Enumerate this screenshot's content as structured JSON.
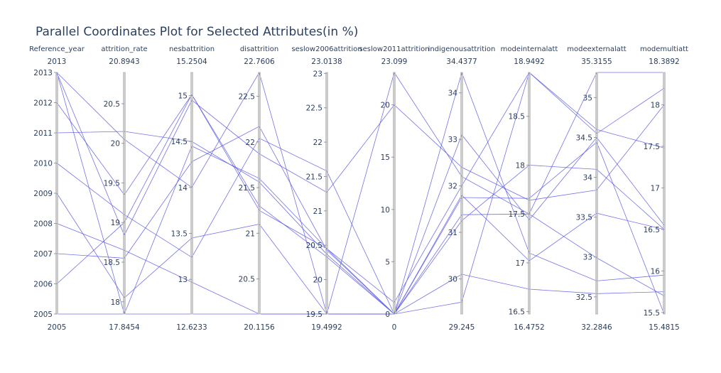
{
  "colors": {
    "line": "#5b5be6",
    "text": "#2a3f5f"
  },
  "chart_data": {
    "type": "parallel_coordinates",
    "title": "Parallel Coordinates Plot for Selected Attributes(in %)",
    "dimensions": [
      {
        "label": "Reference_year",
        "range": [
          2005,
          2013
        ],
        "min_label": "2005",
        "max_label": "2013",
        "ticks": [
          2005,
          2006,
          2007,
          2008,
          2009,
          2010,
          2011,
          2012,
          2013
        ]
      },
      {
        "label": "attrition_rate",
        "range": [
          17.8454,
          20.8943
        ],
        "min_label": "17.8454",
        "max_label": "20.8943",
        "ticks": [
          18,
          18.5,
          19,
          19.5,
          20,
          20.5
        ]
      },
      {
        "label": "nesbattrition",
        "range": [
          12.6233,
          15.2504
        ],
        "min_label": "12.6233",
        "max_label": "15.2504",
        "ticks": [
          13,
          13.5,
          14,
          14.5,
          15
        ]
      },
      {
        "label": "disattrition",
        "range": [
          20.1156,
          22.7606
        ],
        "min_label": "20.1156",
        "max_label": "22.7606",
        "ticks": [
          20.5,
          21,
          21.5,
          22,
          22.5
        ]
      },
      {
        "label": "seslow2006attrition",
        "range": [
          19.4992,
          23.0138
        ],
        "min_label": "19.4992",
        "max_label": "23.0138",
        "ticks": [
          19.5,
          20,
          20.5,
          21,
          21.5,
          22,
          22.5,
          23
        ]
      },
      {
        "label": "seslow2011attrition",
        "range": [
          0,
          23.099
        ],
        "min_label": "0",
        "max_label": "23.099",
        "ticks": [
          0,
          5,
          10,
          15,
          20
        ]
      },
      {
        "label": "indigenousattrition",
        "range": [
          29.245,
          34.4377
        ],
        "min_label": "29.245",
        "max_label": "34.4377",
        "ticks": [
          30,
          31,
          32,
          33,
          34
        ]
      },
      {
        "label": "modeinternalatt",
        "range": [
          16.4752,
          18.9492
        ],
        "min_label": "16.4752",
        "max_label": "18.9492",
        "ticks": [
          16.5,
          17,
          17.5,
          18,
          18.5
        ]
      },
      {
        "label": "modeexternalatt",
        "range": [
          32.2846,
          35.3155
        ],
        "min_label": "32.2846",
        "max_label": "35.3155",
        "ticks": [
          32.5,
          33,
          33.5,
          34,
          34.5,
          35
        ]
      },
      {
        "label": "modemultiatt",
        "range": [
          15.4815,
          18.3892
        ],
        "min_label": "15.4815",
        "max_label": "18.3892",
        "ticks": [
          15.5,
          16,
          16.5,
          17,
          17.5,
          18
        ]
      }
    ],
    "records": [
      [
        2005,
        17.8454,
        14.45,
        21.6,
        20.45,
        1.1,
        32.0,
        18.9492,
        34.55,
        18.2
      ],
      [
        2006,
        19.0,
        15.01,
        21.3,
        20.33,
        0,
        34.4377,
        17.1,
        32.7,
        15.95
      ],
      [
        2007,
        18.55,
        14.28,
        22.17,
        20.43,
        0,
        31.25,
        18.0,
        34.1,
        16.5
      ],
      [
        2008,
        18.65,
        12.97,
        20.1156,
        19.5,
        0,
        30.1,
        16.73,
        32.54,
        15.75
      ],
      [
        2009,
        18.05,
        13.45,
        21.1,
        19.5,
        0,
        29.5,
        18.9492,
        34.6,
        17.48
      ],
      [
        2010,
        19.1,
        13.24,
        22.04,
        21.58,
        0,
        31.8,
        17.02,
        33.55,
        16.5
      ],
      [
        2011,
        20.15,
        14.5,
        21.56,
        20.37,
        0,
        33.1,
        17.44,
        34.5,
        16.55
      ],
      [
        2012,
        19.35,
        15.01,
        21.25,
        20.45,
        0,
        31.38,
        17.5,
        32.99,
        15.7
      ],
      [
        2013,
        17.8454,
        12.6233,
        20.1156,
        19.4992,
        0,
        31.75,
        17.66,
        34.44,
        15.4815
      ],
      [
        2013,
        18.84,
        14.95,
        21.87,
        21.27,
        20.0,
        32.4,
        17.64,
        33.84,
        18.0
      ],
      [
        2013,
        20.05,
        14.0,
        22.7606,
        19.4992,
        23.099,
        32.2,
        17.5,
        35.3155,
        18.3892
      ]
    ]
  }
}
